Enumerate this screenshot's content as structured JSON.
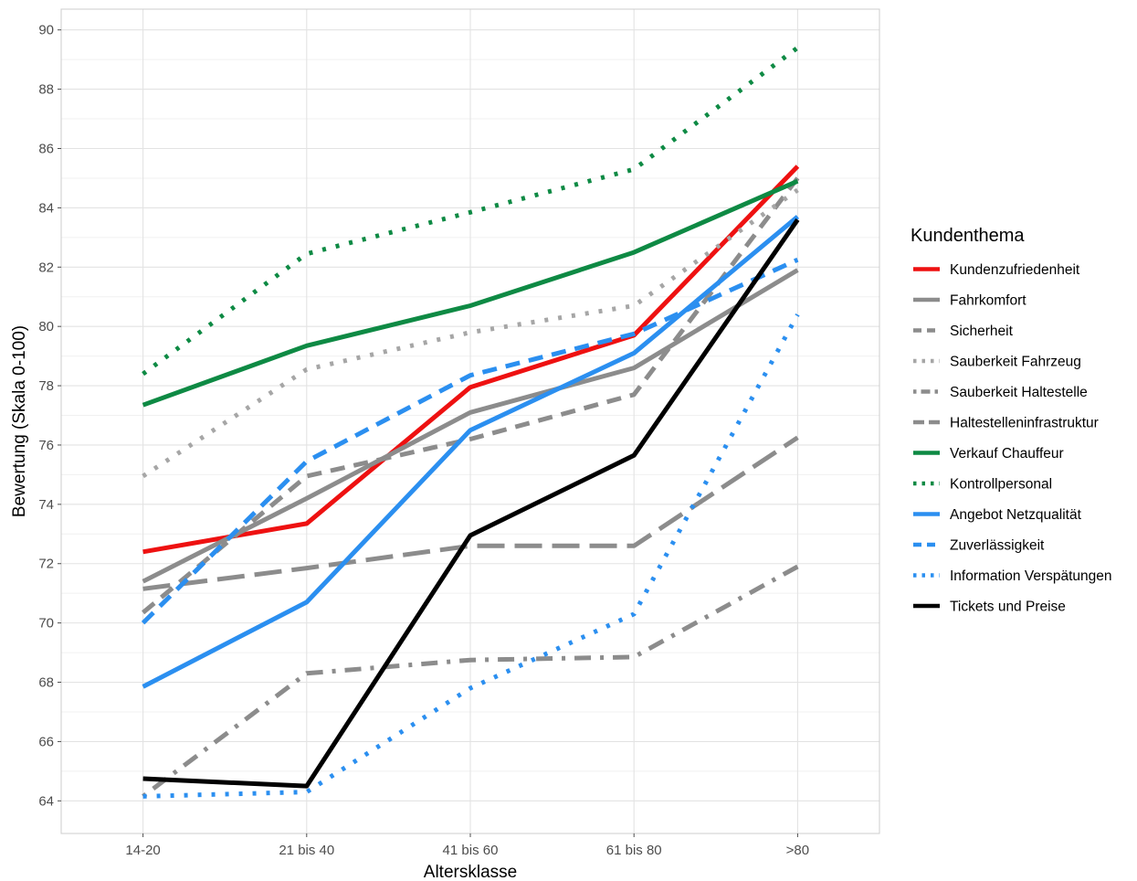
{
  "chart_data": {
    "type": "line",
    "xlabel": "Altersklasse",
    "ylabel": "Bewertung (Skala 0-100)",
    "categories": [
      "14-20",
      "21 bis 40",
      "41 bis 60",
      "61 bis 80",
      ">80"
    ],
    "ylim": [
      62.9,
      90.7
    ],
    "yticks": [
      64,
      66,
      68,
      70,
      72,
      74,
      76,
      78,
      80,
      82,
      84,
      86,
      88,
      90
    ],
    "grid": true,
    "legend": {
      "title": "Kundenthema",
      "position": "right"
    },
    "series": [
      {
        "name": "Kundenzufriedenheit",
        "color": "#ee1111",
        "dash": "solid",
        "values": [
          72.4,
          73.35,
          77.95,
          79.7,
          85.4
        ]
      },
      {
        "name": "Fahrkomfort",
        "color": "#8c8c8c",
        "dash": "solid",
        "values": [
          71.4,
          74.2,
          77.1,
          78.6,
          81.9
        ]
      },
      {
        "name": "Sicherheit",
        "color": "#8c8c8c",
        "dash": "dashed",
        "values": [
          70.35,
          74.95,
          76.2,
          77.7,
          85.0
        ]
      },
      {
        "name": "Sauberkeit Fahrzeug",
        "color": "#a6a6a6",
        "dash": "dotted",
        "values": [
          74.95,
          78.55,
          79.8,
          80.7,
          84.6
        ]
      },
      {
        "name": "Sauberkeit Haltestelle",
        "color": "#8c8c8c",
        "dash": "dotdash",
        "values": [
          64.15,
          68.3,
          68.75,
          68.85,
          71.9
        ]
      },
      {
        "name": "Haltestelleninfrastruktur",
        "color": "#8c8c8c",
        "dash": "longdash",
        "values": [
          71.15,
          71.85,
          72.6,
          72.6,
          76.25
        ]
      },
      {
        "name": "Verkauf Chauffeur",
        "color": "#0e8a44",
        "dash": "solid",
        "values": [
          77.35,
          79.35,
          80.7,
          82.5,
          84.9
        ]
      },
      {
        "name": "Kontrollpersonal",
        "color": "#0e8a44",
        "dash": "dotted",
        "values": [
          78.4,
          82.45,
          83.85,
          85.3,
          89.4
        ]
      },
      {
        "name": "Angebot Netzqualität",
        "color": "#2b8ff0",
        "dash": "solid",
        "values": [
          67.85,
          70.7,
          76.5,
          79.1,
          83.7
        ]
      },
      {
        "name": "Zuverlässigkeit",
        "color": "#2b8ff0",
        "dash": "dashed",
        "values": [
          70.0,
          75.45,
          78.35,
          79.75,
          82.25
        ]
      },
      {
        "name": "Information Verspätungen",
        "color": "#2b8ff0",
        "dash": "dotted",
        "values": [
          64.15,
          64.3,
          67.8,
          70.3,
          80.4
        ]
      },
      {
        "name": "Tickets und Preise",
        "color": "#000000",
        "dash": "solid",
        "values": [
          64.75,
          64.5,
          72.95,
          75.65,
          83.6
        ]
      }
    ]
  }
}
